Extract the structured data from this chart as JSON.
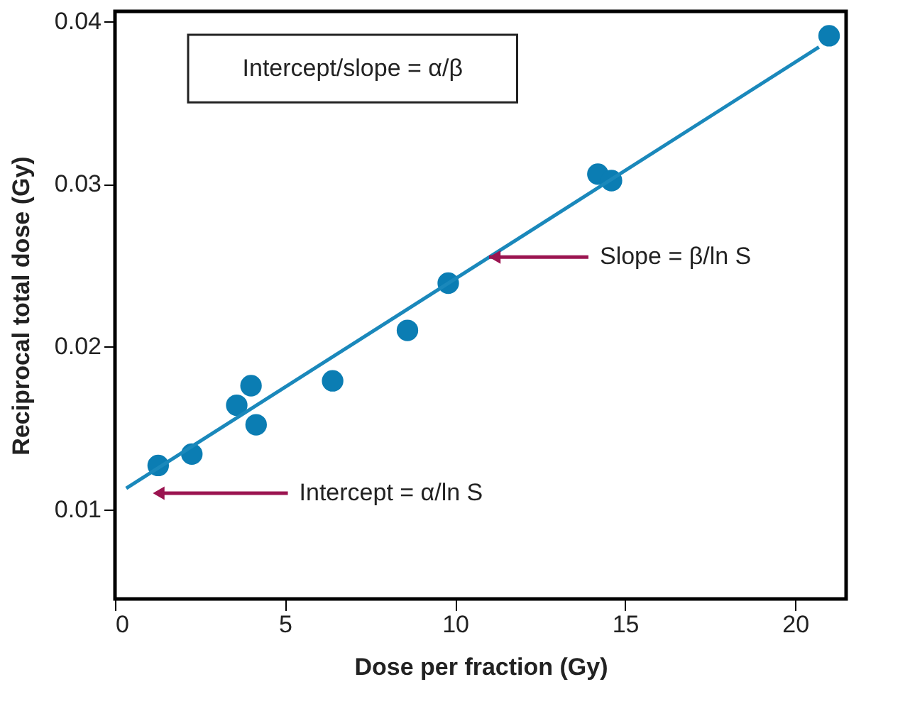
{
  "chart_data": {
    "type": "scatter",
    "xlabel": "Dose per fraction (Gy)",
    "ylabel": "Reciprocal total dose (Gy)",
    "grid": false,
    "x": [
      1.27,
      2.26,
      3.58,
      4.0,
      4.15,
      6.4,
      8.6,
      9.8,
      14.2,
      14.6,
      21.0
    ],
    "series": [
      {
        "color": "#0b7db3",
        "marker": "circle",
        "values": [
          0.0127,
          0.0134,
          0.0164,
          0.0176,
          0.0152,
          0.0179,
          0.021,
          0.0239,
          0.0306,
          0.0302,
          0.0391
        ]
      },
      {
        "type": "line",
        "color": "#1a88bb",
        "marker": "none",
        "x": [
          0.33,
          20.7
        ],
        "values": [
          0.0113,
          0.0384
        ]
      }
    ],
    "xlim": [
      0,
      21.5
    ],
    "xticks": [
      0,
      5,
      10,
      15,
      20
    ],
    "ylim": [
      0.0045,
      0.0406
    ],
    "yticks": [
      0.01,
      0.02,
      0.03,
      0.04
    ],
    "annotations": [
      "Intercept/slope = α/β",
      {
        "text": "Slope = β/ln S",
        "x": 11.0,
        "y": 0.0255
      },
      "Intercept = α/ln S"
    ]
  }
}
